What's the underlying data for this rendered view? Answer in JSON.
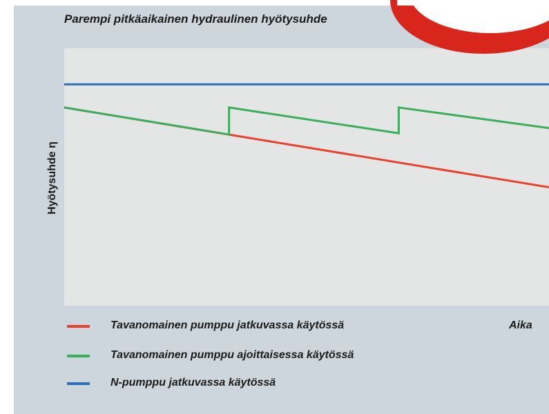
{
  "chart_data": {
    "type": "line",
    "title": "Parempi pitkäaikainen hydraulinen hyötysuhde",
    "y_label": "Hyötysuhde η",
    "x_label": "Aika",
    "xlim": [
      0,
      100
    ],
    "ylim": [
      0,
      100
    ],
    "series": [
      {
        "name": "Tavanomainen pumppu jatkuvassa käytössä",
        "color": "#e8402a",
        "x": [
          0,
          100
        ],
        "y": [
          77,
          46
        ]
      },
      {
        "name": "Tavanomainen pumppu ajoittaisessa käytössä",
        "color": "#3aae5c",
        "x": [
          0,
          34,
          34,
          69,
          69,
          100
        ],
        "y": [
          77,
          66.5,
          77,
          67,
          77,
          69
        ]
      },
      {
        "name": "N-pumppu jatkuvassa käytössä",
        "color": "#2a6fb8",
        "x": [
          0,
          100
        ],
        "y": [
          86,
          86
        ]
      }
    ]
  }
}
